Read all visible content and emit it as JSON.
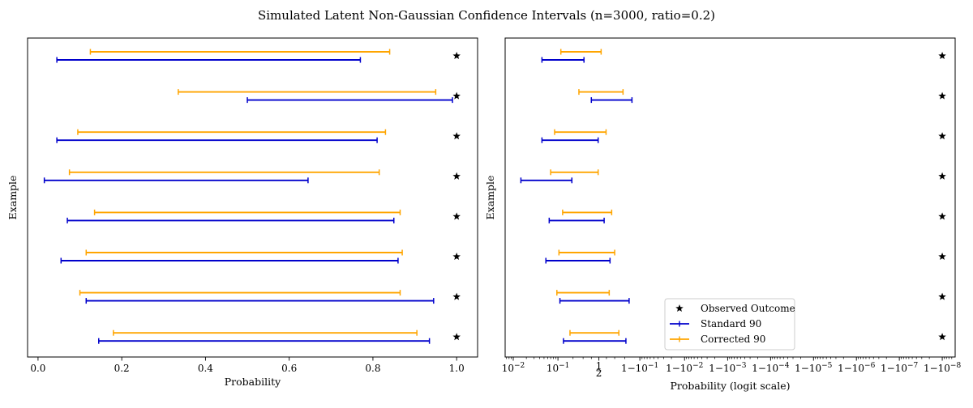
{
  "figure_title": "Simulated Latent Non-Gaussian Confidence Intervals (n=3000, ratio=0.2)",
  "colors": {
    "standard": "#0000cc",
    "corrected": "#ffa500",
    "observed": "#000000",
    "frame": "#000000"
  },
  "chart_data": [
    {
      "type": "interval",
      "panel": "left",
      "xlabel": "Probability",
      "ylabel": "Example",
      "xscale": "linear",
      "xlim": [
        -0.025,
        1.05
      ],
      "xticks": [
        {
          "value": 0.0,
          "label": "0.0"
        },
        {
          "value": 0.2,
          "label": "0.2"
        },
        {
          "value": 0.4,
          "label": "0.4"
        },
        {
          "value": 0.6,
          "label": "0.6"
        },
        {
          "value": 0.8,
          "label": "0.8"
        },
        {
          "value": 1.0,
          "label": "1.0"
        }
      ],
      "grid": false,
      "examples": [
        {
          "standard": [
            0.045,
            0.77
          ],
          "corrected": [
            0.125,
            0.84
          ],
          "observed": 1.0
        },
        {
          "standard": [
            0.5,
            0.99
          ],
          "corrected": [
            0.335,
            0.95
          ],
          "observed": 1.0
        },
        {
          "standard": [
            0.045,
            0.81
          ],
          "corrected": [
            0.095,
            0.83
          ],
          "observed": 1.0
        },
        {
          "standard": [
            0.015,
            0.645
          ],
          "corrected": [
            0.075,
            0.815
          ],
          "observed": 1.0
        },
        {
          "standard": [
            0.07,
            0.85
          ],
          "corrected": [
            0.135,
            0.865
          ],
          "observed": 1.0
        },
        {
          "standard": [
            0.055,
            0.86
          ],
          "corrected": [
            0.115,
            0.87
          ],
          "observed": 1.0
        },
        {
          "standard": [
            0.115,
            0.945
          ],
          "corrected": [
            0.1,
            0.865
          ],
          "observed": 1.0
        },
        {
          "standard": [
            0.145,
            0.935
          ],
          "corrected": [
            0.18,
            0.905
          ],
          "observed": 1.0
        }
      ]
    },
    {
      "type": "interval",
      "panel": "right",
      "xlabel": "Probability (logit scale)",
      "ylabel": "Example",
      "xscale": "logit",
      "xlim": [
        0.0065,
        0.999999995
      ],
      "xticks": [
        {
          "value": 0.01,
          "label": "10^{-2}"
        },
        {
          "value": 0.1,
          "label": "10^{-1}"
        },
        {
          "value": 0.5,
          "label": "1/2"
        },
        {
          "value": 0.9,
          "label": "1 - 10^{-1}"
        },
        {
          "value": 0.99,
          "label": "1 - 10^{-2}"
        },
        {
          "value": 0.999,
          "label": "1 - 10^{-3}"
        },
        {
          "value": 0.9999,
          "label": "1 - 10^{-4}"
        },
        {
          "value": 0.99999,
          "label": "1 - 10^{-5}"
        },
        {
          "value": 0.999999,
          "label": "1 - 10^{-6}"
        },
        {
          "value": 0.9999999,
          "label": "1 - 10^{-7}"
        },
        {
          "value": 0.99999999,
          "label": "1 - 10^{-8}"
        }
      ],
      "grid": false,
      "legend": {
        "placement": "lower-center",
        "entries": [
          {
            "label": "Observed Outcome",
            "kind": "star",
            "color": "#000000"
          },
          {
            "label": "Standard 90",
            "kind": "line",
            "color": "#0000cc"
          },
          {
            "label": "Corrected 90",
            "kind": "line",
            "color": "#ffa500"
          }
        ]
      },
      "examples": [
        {
          "standard": [
            0.045,
            0.31
          ],
          "corrected": [
            0.115,
            0.53
          ],
          "observed": 0.99999999
        },
        {
          "standard": [
            0.4,
            0.855
          ],
          "corrected": [
            0.255,
            0.785
          ],
          "observed": 0.99999999
        },
        {
          "standard": [
            0.045,
            0.49
          ],
          "corrected": [
            0.085,
            0.595
          ],
          "observed": 0.99999999
        },
        {
          "standard": [
            0.015,
            0.19
          ],
          "corrected": [
            0.07,
            0.49
          ],
          "observed": 0.99999999
        },
        {
          "standard": [
            0.065,
            0.57
          ],
          "corrected": [
            0.125,
            0.665
          ],
          "observed": 0.99999999
        },
        {
          "standard": [
            0.055,
            0.645
          ],
          "corrected": [
            0.105,
            0.7
          ],
          "observed": 0.99999999
        },
        {
          "standard": [
            0.11,
            0.835
          ],
          "corrected": [
            0.095,
            0.635
          ],
          "observed": 0.99999999
        },
        {
          "standard": [
            0.13,
            0.81
          ],
          "corrected": [
            0.175,
            0.745
          ],
          "observed": 0.99999999
        }
      ]
    }
  ]
}
